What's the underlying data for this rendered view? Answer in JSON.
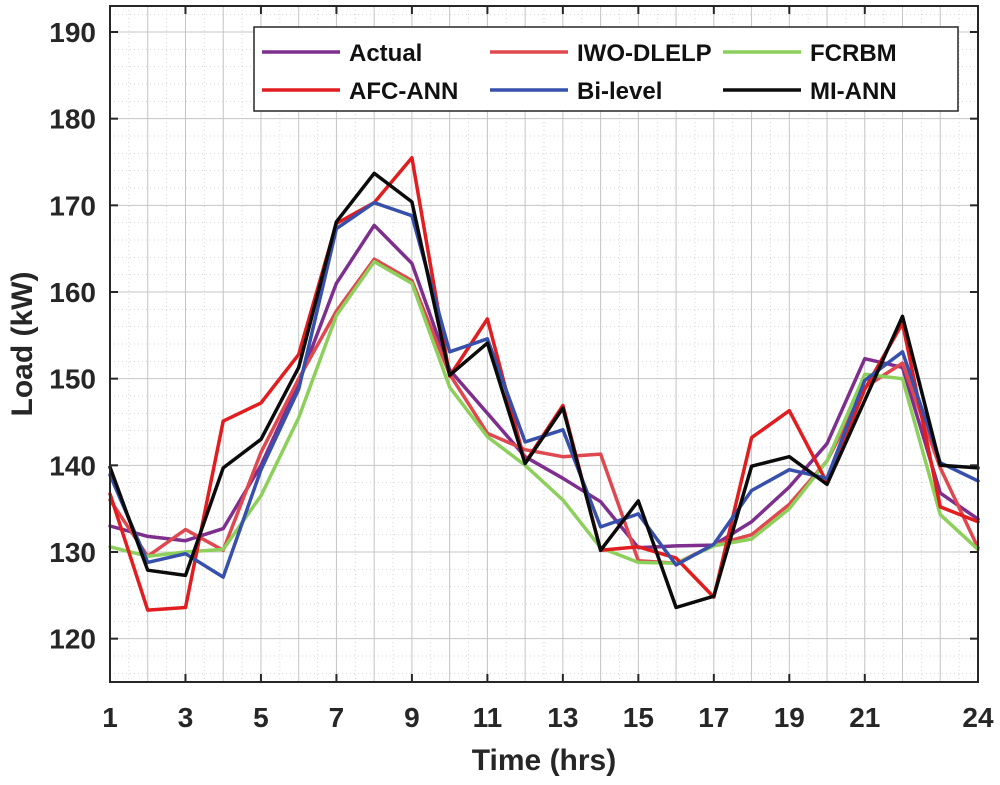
{
  "chart_data": {
    "type": "line",
    "title": "",
    "xlabel": "Time (hrs)",
    "ylabel": "Load (kW)",
    "xlim": [
      1,
      24
    ],
    "ylim": [
      115,
      193
    ],
    "grid": true,
    "legend_position": "top-right",
    "x_ticks": [
      1,
      3,
      5,
      7,
      9,
      11,
      13,
      15,
      17,
      19,
      21,
      24
    ],
    "y_ticks": [
      120,
      130,
      140,
      150,
      160,
      170,
      180,
      190
    ],
    "x": [
      1,
      2,
      3,
      4,
      5,
      6,
      7,
      8,
      9,
      10,
      11,
      12,
      13,
      14,
      15,
      16,
      17,
      18,
      19,
      20,
      21,
      22,
      23,
      24
    ],
    "series": [
      {
        "name": "Actual",
        "color": "#7e2f8e",
        "values": [
          133,
          131.8,
          131.3,
          132.7,
          140,
          149.5,
          161,
          167.7,
          163.3,
          151,
          146,
          141,
          138.5,
          135.8,
          130.5,
          130.7,
          130.8,
          133.5,
          137.5,
          142.5,
          152.3,
          151.3,
          136.8,
          133.8
        ]
      },
      {
        "name": "IWO-DLELP",
        "color": "#e0484f",
        "values": [
          136,
          129.5,
          132.6,
          130.2,
          141.5,
          150,
          157.8,
          163.8,
          161.3,
          150.5,
          143.7,
          141.8,
          141,
          141.3,
          129,
          128.7,
          130.8,
          132,
          135.5,
          140.5,
          149,
          151.8,
          139.7,
          130.5
        ]
      },
      {
        "name": "FCRBM",
        "color": "#8ccf5a",
        "values": [
          130.6,
          129.5,
          130,
          130.3,
          136.5,
          145.5,
          157.3,
          163.5,
          161,
          149,
          143.3,
          140,
          136,
          130.5,
          128.8,
          128.7,
          130.7,
          131.5,
          135,
          140.5,
          150.5,
          150,
          134.3,
          130.3
        ]
      },
      {
        "name": "AFC-ANN",
        "color": "#e21d1f",
        "values": [
          136.7,
          123.3,
          123.6,
          145.1,
          147.2,
          152.8,
          167.9,
          170.3,
          175.5,
          150.3,
          156.9,
          140.3,
          146.9,
          130.2,
          130.6,
          129.3,
          124.8,
          143.2,
          146.3,
          138,
          148.8,
          156.4,
          135.2,
          133.5
        ]
      },
      {
        "name": "Bi-level",
        "color": "#3750ab",
        "values": [
          138.9,
          128.8,
          129.8,
          127.1,
          139.5,
          148.8,
          167.3,
          170.3,
          168.8,
          153.1,
          154.6,
          142.7,
          144.1,
          132.9,
          134.4,
          128.5,
          130.9,
          137.1,
          139.5,
          138.5,
          149.8,
          153.1,
          140.3,
          138.2
        ]
      },
      {
        "name": "MI-ANN",
        "color": "#0b0b0b",
        "values": [
          139.8,
          127.9,
          127.3,
          139.7,
          143,
          151.3,
          168.1,
          173.7,
          170.4,
          150.4,
          154.1,
          140.2,
          146.6,
          130.2,
          135.9,
          123.6,
          124.9,
          139.9,
          141,
          137.8,
          147.5,
          157.2,
          140,
          139.7
        ]
      }
    ]
  }
}
